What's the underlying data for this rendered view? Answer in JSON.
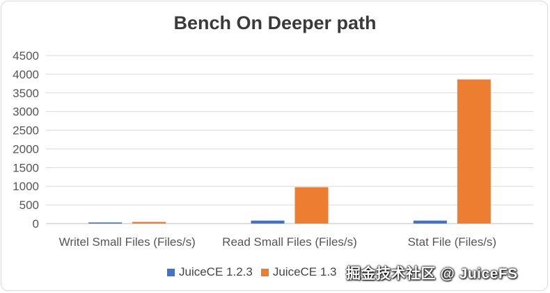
{
  "chart_data": {
    "type": "bar",
    "title": "Bench On Deeper path",
    "categories": [
      "Writel Small Files (Files/s)",
      "Read Small Files (Files/s)",
      "Stat File (Files/s)"
    ],
    "series": [
      {
        "name": "JuiceCE 1.2.3",
        "color": "#4472c4",
        "values": [
          30,
          80,
          80
        ]
      },
      {
        "name": "JuiceCE 1.3",
        "color": "#ed7d31",
        "values": [
          45,
          975,
          3860
        ]
      }
    ],
    "ylim": [
      0,
      4500
    ],
    "yticks": [
      0,
      500,
      1000,
      1500,
      2000,
      2500,
      3000,
      3500,
      4000,
      4500
    ],
    "grid": true,
    "legend_position": "bottom"
  },
  "watermark": "掘金技术社区 @ JuiceFS"
}
